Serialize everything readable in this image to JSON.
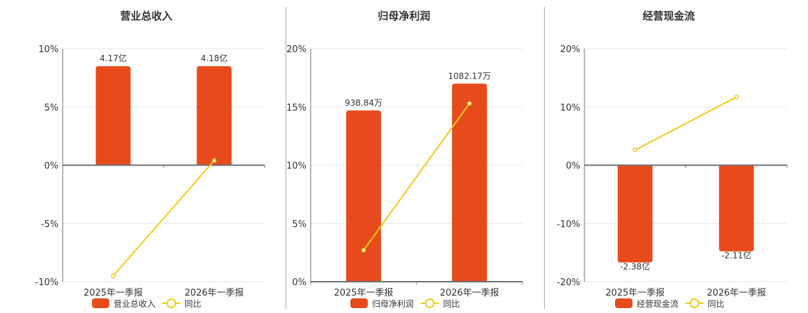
{
  "colors": {
    "bar": "#e84b1b",
    "line": "#f2cb16",
    "axis": "#6e7079",
    "grid": "#e0e6f1",
    "text": "#333333",
    "separator": "#a8a8a8"
  },
  "panels": [
    {
      "title": "营业总收入",
      "legend": {
        "bar_label": "营业总收入",
        "line_label": "同比"
      },
      "y_ticks": [
        "10%",
        "5%",
        "0%",
        "-5%",
        "-10%"
      ],
      "categories": [
        "2025年一季报",
        "2026年一季报"
      ],
      "bar_labels": [
        "4.17亿",
        "4.18亿"
      ]
    },
    {
      "title": "归母净利润",
      "legend": {
        "bar_label": "归母净利润",
        "line_label": "同比"
      },
      "y_ticks": [
        "20%",
        "15%",
        "10%",
        "5%",
        "0%"
      ],
      "categories": [
        "2025年一季报",
        "2026年一季报"
      ],
      "bar_labels": [
        "938.84万",
        "1082.17万"
      ]
    },
    {
      "title": "经营现金流",
      "legend": {
        "bar_label": "经营现金流",
        "line_label": "同比"
      },
      "y_ticks": [
        "20%",
        "10%",
        "0%",
        "-10%",
        "-20%"
      ],
      "categories": [
        "2025年一季报",
        "2026年一季报"
      ],
      "bar_labels": [
        "-2.38亿",
        "-2.11亿"
      ]
    }
  ],
  "chart_data": [
    {
      "type": "bar",
      "title": "营业总收入",
      "categories": [
        "2025年一季报",
        "2026年一季报"
      ],
      "series": [
        {
          "name": "营业总收入",
          "type": "bar",
          "values": [
            4.17,
            4.18
          ],
          "unit": "亿",
          "labels": [
            "4.17亿",
            "4.18亿"
          ],
          "plotted_height_pct": [
            8.5,
            8.5
          ]
        },
        {
          "name": "同比",
          "type": "line",
          "values": [
            -9.5,
            0.4
          ],
          "unit": "%"
        }
      ],
      "ylim": [
        -10,
        10
      ],
      "y_ticks": [
        10,
        5,
        0,
        -5,
        -10
      ],
      "ylabel": "%",
      "grid": true,
      "legend_position": "bottom"
    },
    {
      "type": "bar",
      "title": "归母净利润",
      "categories": [
        "2025年一季报",
        "2026年一季报"
      ],
      "series": [
        {
          "name": "归母净利润",
          "type": "bar",
          "values": [
            938.84,
            1082.17
          ],
          "unit": "万",
          "labels": [
            "938.84万",
            "1082.17万"
          ],
          "plotted_height_pct": [
            14.7,
            17.0
          ]
        },
        {
          "name": "同比",
          "type": "line",
          "values": [
            2.7,
            15.3
          ],
          "unit": "%"
        }
      ],
      "ylim": [
        0,
        20
      ],
      "y_ticks": [
        20,
        15,
        10,
        5,
        0
      ],
      "ylabel": "%",
      "grid": true,
      "legend_position": "bottom"
    },
    {
      "type": "bar",
      "title": "经营现金流",
      "categories": [
        "2025年一季报",
        "2026年一季报"
      ],
      "series": [
        {
          "name": "经营现金流",
          "type": "bar",
          "values": [
            -2.38,
            -2.11
          ],
          "unit": "亿",
          "labels": [
            "-2.38亿",
            "-2.11亿"
          ],
          "plotted_height_pct": [
            -16.7,
            -14.8
          ]
        },
        {
          "name": "同比",
          "type": "line",
          "values": [
            2.6,
            11.7
          ],
          "unit": "%"
        }
      ],
      "ylim": [
        -20,
        20
      ],
      "y_ticks": [
        20,
        10,
        0,
        -10,
        -20
      ],
      "ylabel": "%",
      "grid": true,
      "legend_position": "bottom"
    }
  ]
}
